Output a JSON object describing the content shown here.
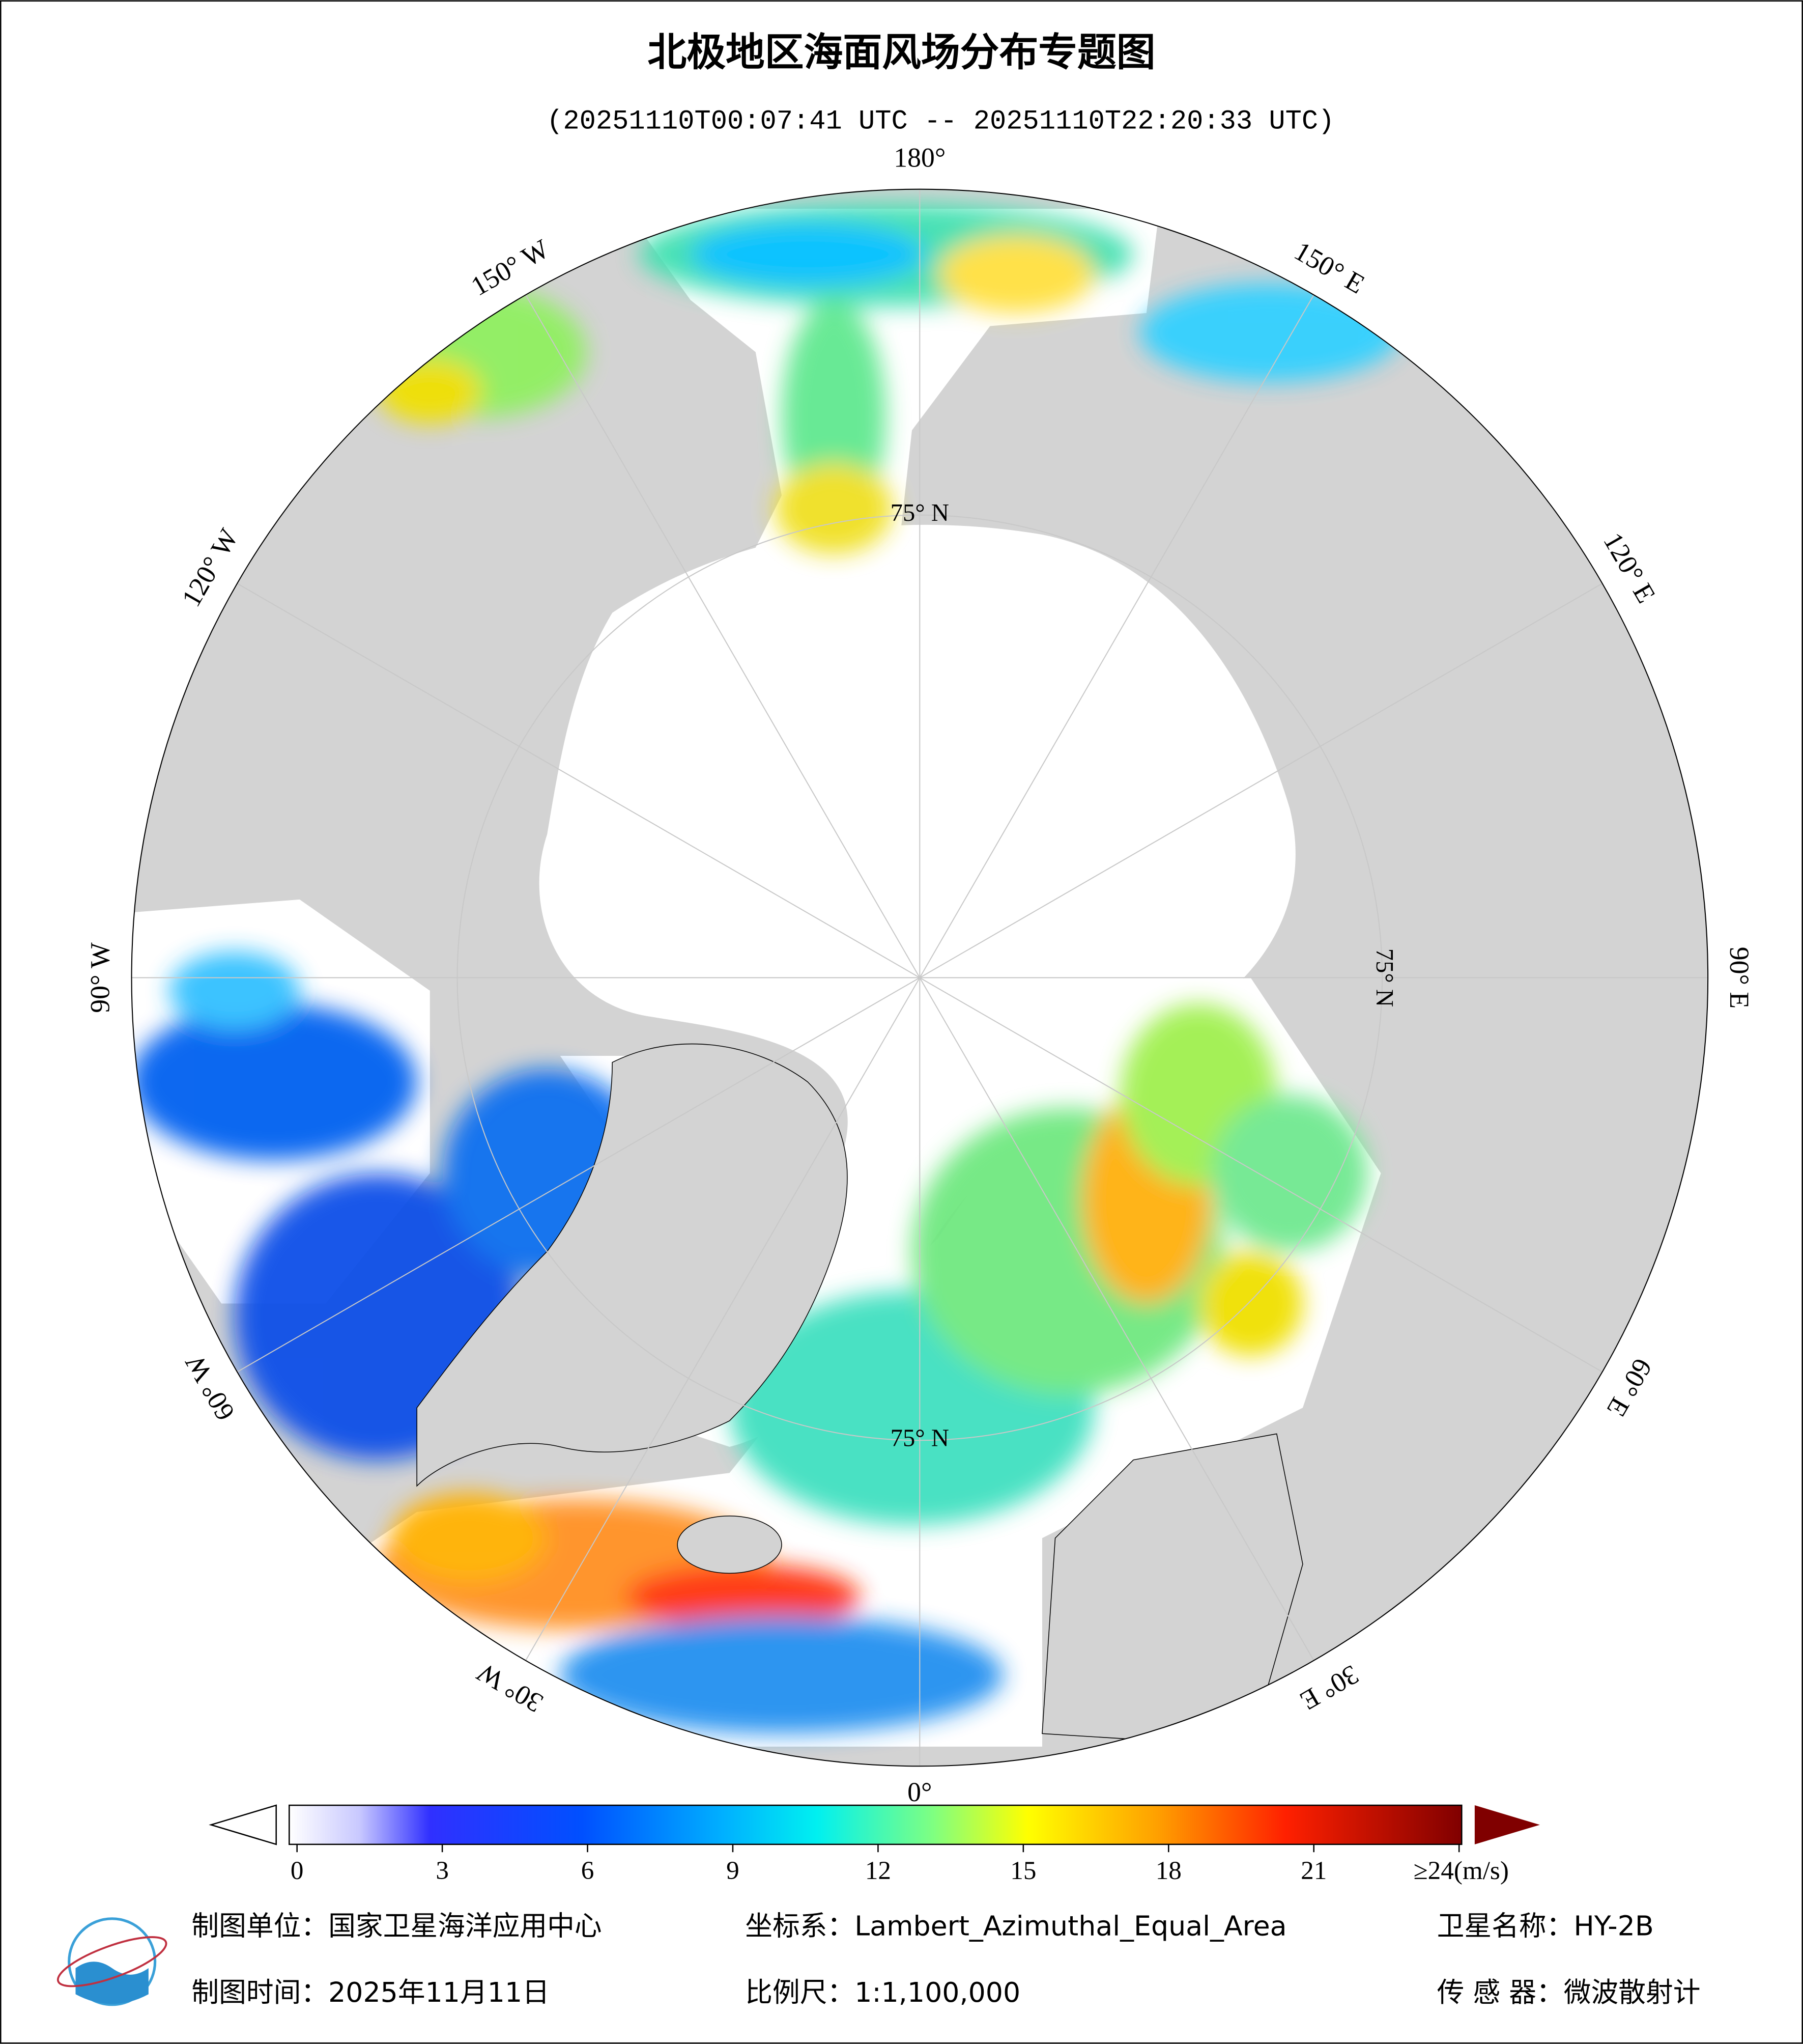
{
  "header": {
    "title": "北极地区海面风场分布专题图",
    "subtitle": "(20251110T00:07:41 UTC -- 20251110T22:20:33 UTC)"
  },
  "map": {
    "longitude_labels": [
      {
        "value": 180,
        "label": "180°"
      },
      {
        "value": 150,
        "label": "150° E"
      },
      {
        "value": 120,
        "label": "120° E"
      },
      {
        "value": 90,
        "label": "90° E"
      },
      {
        "value": 60,
        "label": "60° E"
      },
      {
        "value": 30,
        "label": "30° E"
      },
      {
        "value": 0,
        "label": "0°"
      },
      {
        "value": -30,
        "label": "30° W"
      },
      {
        "value": -60,
        "label": "60° W"
      },
      {
        "value": -90,
        "label": "90° W"
      },
      {
        "value": -120,
        "label": "120° W"
      },
      {
        "value": -150,
        "label": "150° W"
      }
    ],
    "latitude_labels": [
      {
        "value": 75,
        "label": "75° N"
      }
    ]
  },
  "colorbar": {
    "clim": [
      0,
      24
    ],
    "ticks": [
      0,
      3,
      6,
      9,
      12,
      15,
      18,
      21,
      {
        "value": 24,
        "label": "≥24(m/s)"
      }
    ]
  },
  "footer": {
    "producer": "制图单位：国家卫星海洋应用中心",
    "coordinate_system": "坐标系：Lambert_Azimuthal_Equal_Area",
    "satellite": "卫星名称：HY-2B",
    "date": "制图时间：2025年11月11日",
    "scale": "比例尺：1:1,100,000",
    "sensor": "传 感 器：微波散射计"
  }
}
